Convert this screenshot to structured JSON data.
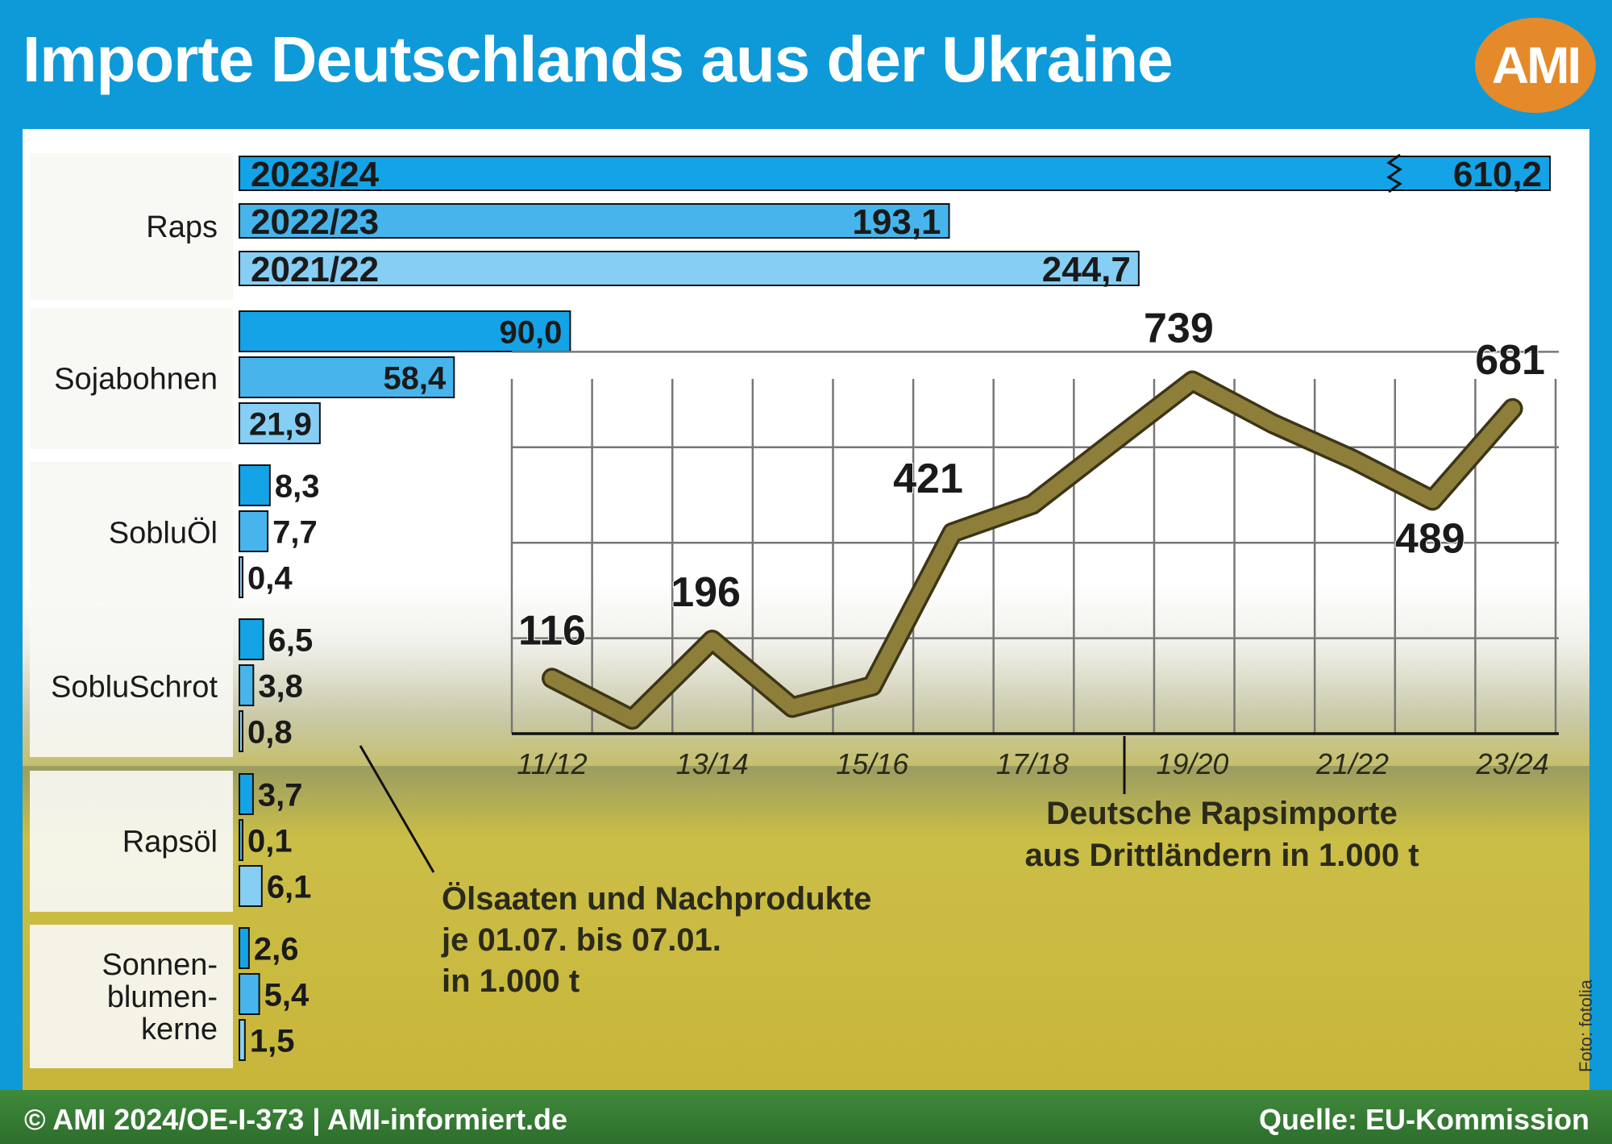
{
  "header": {
    "title": "Importe Deutschlands aus der Ukraine",
    "logo_text": "AMI"
  },
  "footer": {
    "left": "© AMI 2024/OE-I-373 | AMI-informiert.de",
    "right": "Quelle: EU-Kommission"
  },
  "photo_credit": "Foto: fotolia",
  "colors": {
    "background": "#0e9ad9",
    "bar_2023_24": "#14a3e6",
    "bar_2022_23": "#47b5ec",
    "bar_2021_22": "#86cef4",
    "line": "#8d7f3a",
    "logo": "#e48a2a"
  },
  "chart_data": [
    {
      "type": "bar",
      "orientation": "horizontal",
      "note": "Ölsaaten und Nachprodukte je 01.07. bis 07.01. in 1.000 t",
      "note_lines": [
        "Ölsaaten und Nachprodukte",
        "je 01.07. bis 07.01.",
        "in 1.000 t"
      ],
      "series_names": [
        "2023/24",
        "2022/23",
        "2021/22"
      ],
      "categories": [
        {
          "label": "Raps",
          "label_lines": [
            "Raps"
          ],
          "values": [
            610.2,
            193.1,
            244.7
          ],
          "labels": [
            "610,2",
            "193,1",
            "244,7"
          ],
          "axis_break_on_first": true
        },
        {
          "label": "Sojabohnen",
          "label_lines": [
            "Sojabohnen"
          ],
          "values": [
            90.0,
            58.4,
            21.9
          ],
          "labels": [
            "90,0",
            "58,4",
            "21,9"
          ]
        },
        {
          "label": "SobluÖl",
          "label_lines": [
            "SobluÖl"
          ],
          "values": [
            8.3,
            7.7,
            0.4
          ],
          "labels": [
            "8,3",
            "7,7",
            "0,4"
          ]
        },
        {
          "label": "SobluSchrot",
          "label_lines": [
            "SobluSchrot"
          ],
          "values": [
            6.5,
            3.8,
            0.8
          ],
          "labels": [
            "6,5",
            "3,8",
            "0,8"
          ]
        },
        {
          "label": "Rapsöl",
          "label_lines": [
            "Rapsöl"
          ],
          "values": [
            3.7,
            0.1,
            6.1
          ],
          "labels": [
            "3,7",
            "0,1",
            "6,1"
          ]
        },
        {
          "label": "Sonnenblumenkerne",
          "label_lines": [
            "Sonnen-",
            "blumen-",
            "kerne"
          ],
          "values": [
            2.6,
            5.4,
            1.5
          ],
          "labels": [
            "2,6",
            "5,4",
            "1,5"
          ]
        }
      ]
    },
    {
      "type": "line",
      "title": "Deutsche Rapsimporte aus Drittländern in 1.000 t",
      "title_lines": [
        "Deutsche Rapsimporte",
        "aus Drittländern in 1.000 t"
      ],
      "x": [
        "11/12",
        "12/13",
        "13/14",
        "14/15",
        "15/16",
        "16/17",
        "17/18",
        "18/19",
        "19/20",
        "20/21",
        "21/22",
        "22/23",
        "23/24"
      ],
      "x_tick_labels": [
        "11/12",
        "13/14",
        "15/16",
        "17/18",
        "19/20",
        "21/22",
        "23/24"
      ],
      "values": [
        116,
        30,
        196,
        55,
        100,
        421,
        480,
        610,
        739,
        650,
        575,
        489,
        681
      ],
      "labeled_points": [
        {
          "x": "11/12",
          "label": "116"
        },
        {
          "x": "13/14",
          "label": "196"
        },
        {
          "x": "16/17",
          "label": "421"
        },
        {
          "x": "19/20",
          "label": "739"
        },
        {
          "x": "22/23",
          "label": "489"
        },
        {
          "x": "23/24",
          "label": "681"
        }
      ],
      "ylim": [
        0,
        900
      ],
      "grid": true
    }
  ]
}
